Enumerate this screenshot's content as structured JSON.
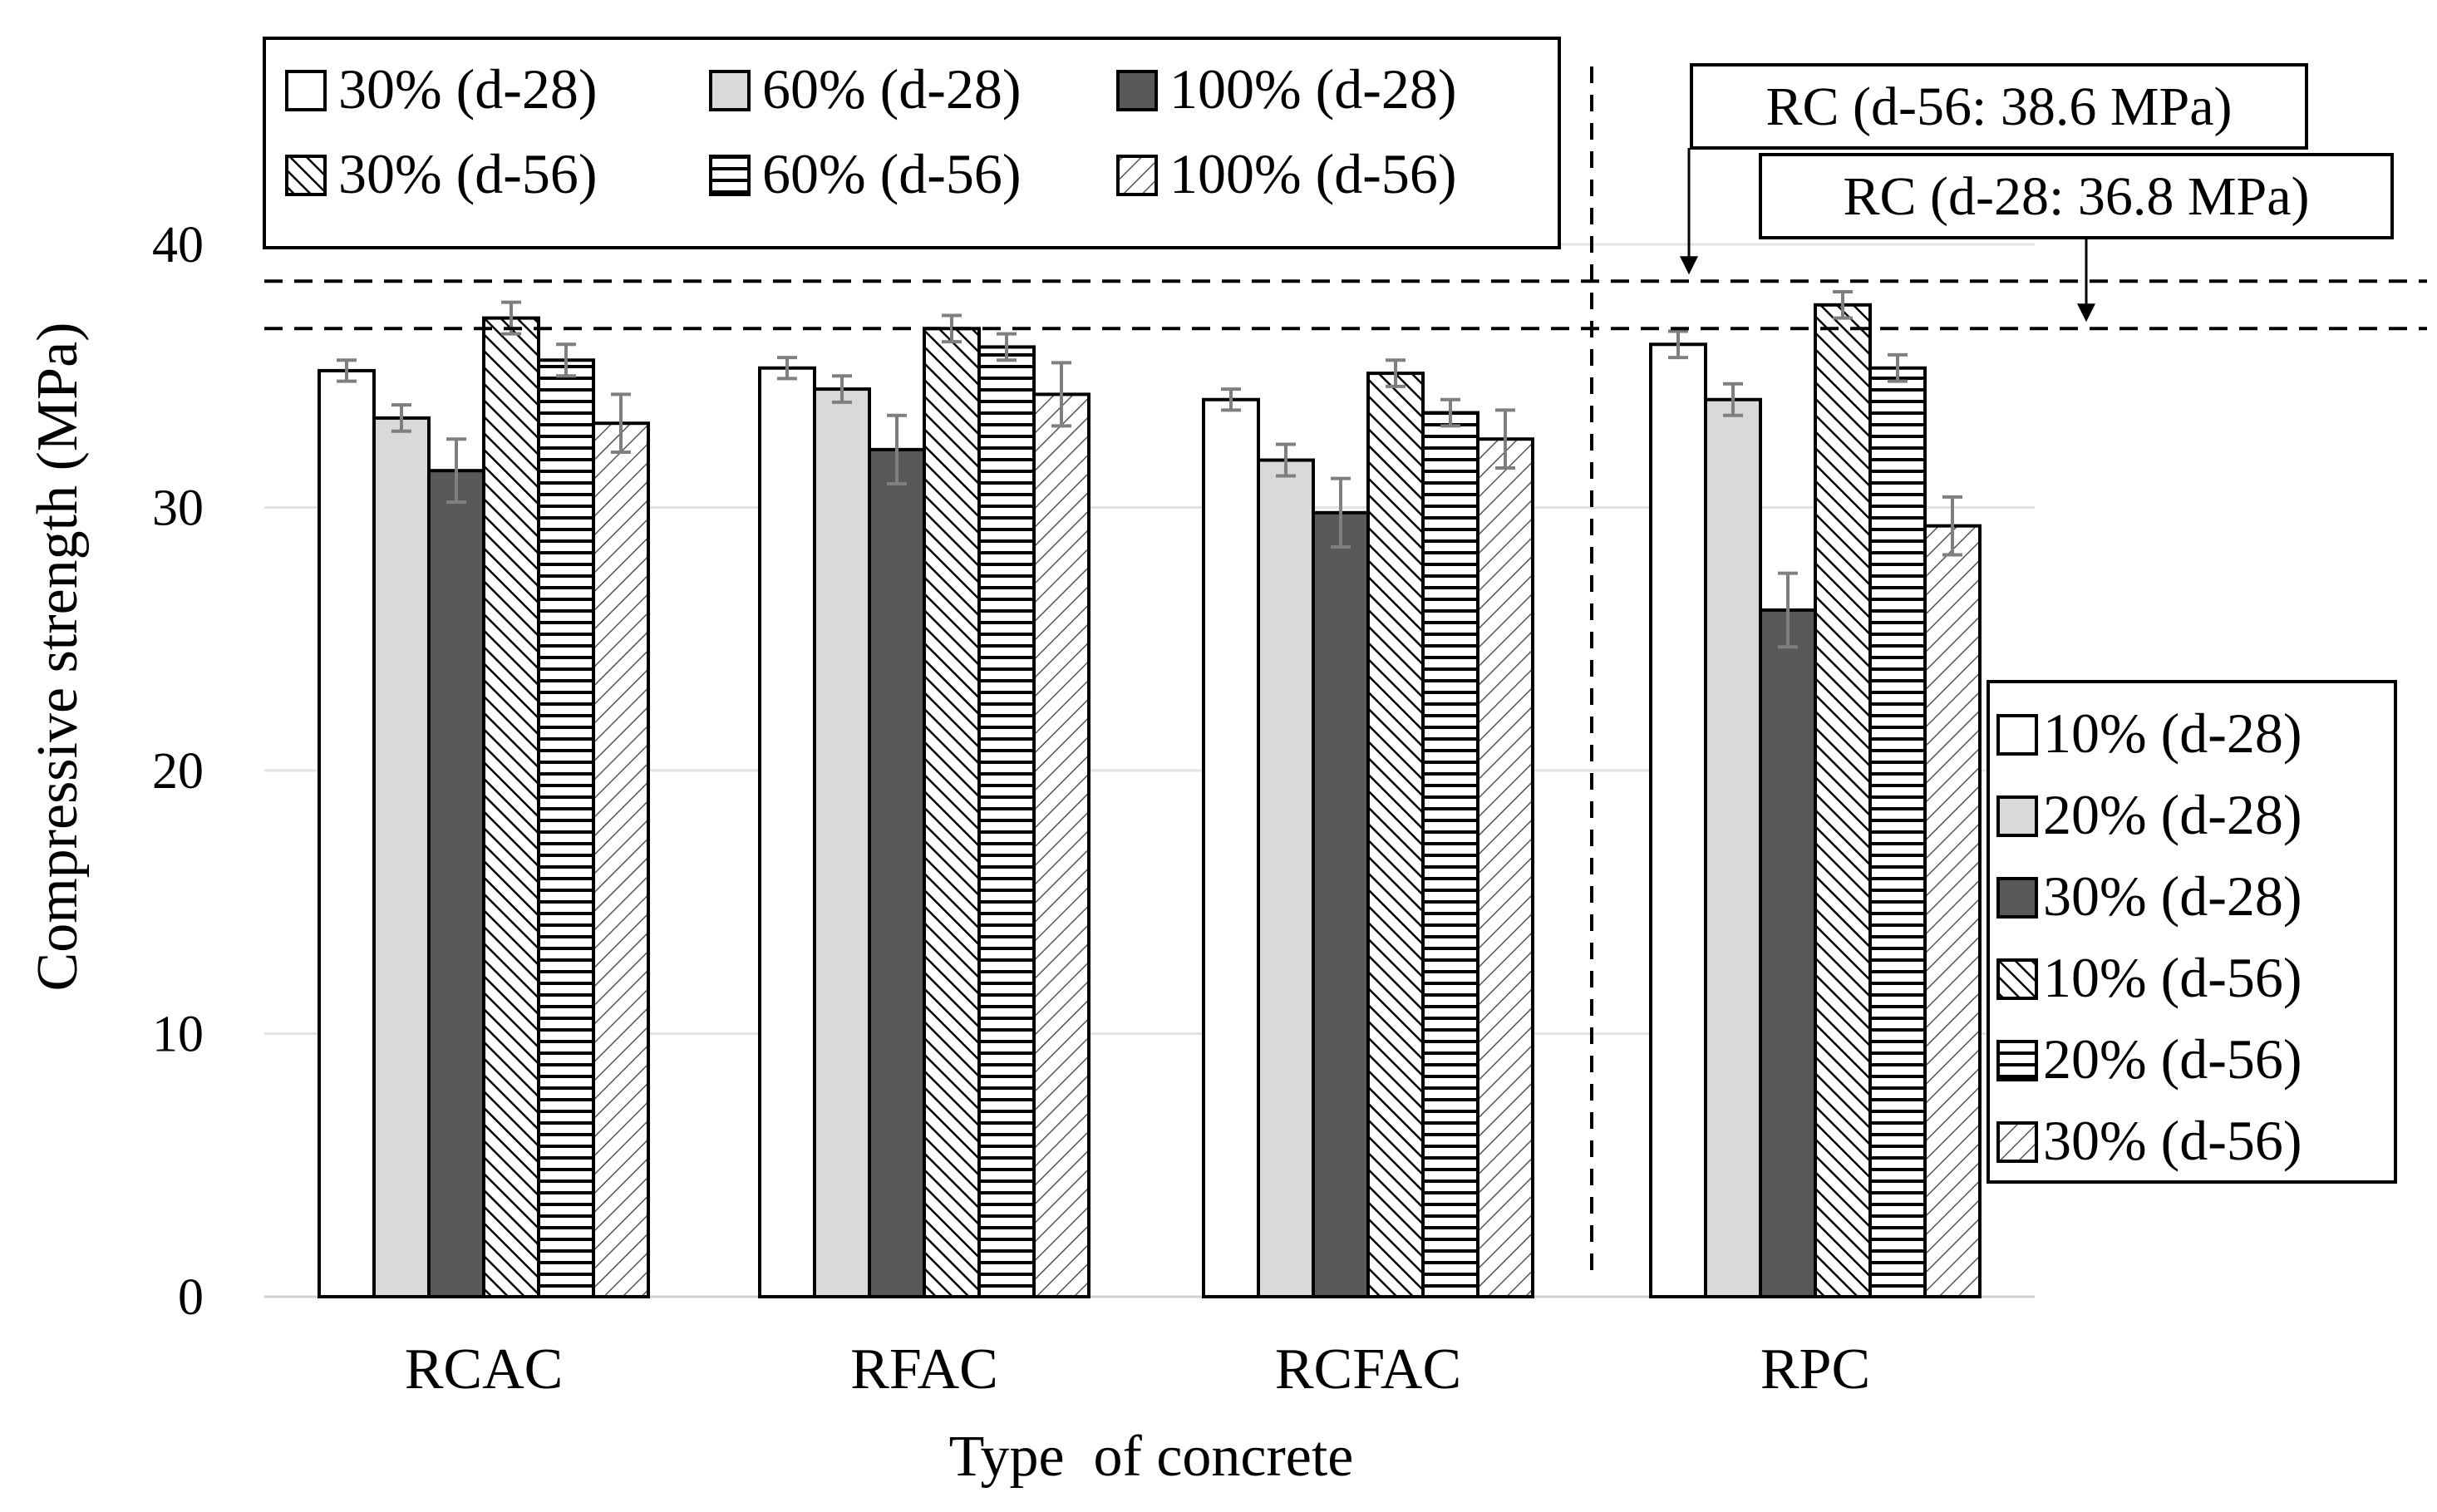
{
  "chart_data": {
    "type": "bar",
    "title": "",
    "xlabel": "Type  of concrete",
    "ylabel": "Compressive strength (MPa)",
    "ylim": [
      0,
      48
    ],
    "yticks": [
      0,
      10,
      20,
      30,
      40
    ],
    "grid": "horizontal",
    "categories": [
      "RCAC",
      "RFAC",
      "RCFAC",
      "RPC"
    ],
    "series": [
      {
        "key": "s1",
        "pattern": "open",
        "values": [
          35.2,
          35.3,
          34.1,
          36.2
        ],
        "errors": [
          0.4,
          0.4,
          0.4,
          0.5
        ]
      },
      {
        "key": "s2",
        "pattern": "light",
        "values": [
          33.4,
          34.5,
          31.8,
          34.1
        ],
        "errors": [
          0.5,
          0.5,
          0.6,
          0.6
        ]
      },
      {
        "key": "s3",
        "pattern": "dark",
        "values": [
          31.4,
          32.2,
          29.8,
          26.1
        ],
        "errors": [
          1.2,
          1.3,
          1.3,
          1.4
        ]
      },
      {
        "key": "s4",
        "pattern": "backdiag",
        "values": [
          37.2,
          36.8,
          35.1,
          37.7
        ],
        "errors": [
          0.6,
          0.5,
          0.5,
          0.5
        ]
      },
      {
        "key": "s5",
        "pattern": "horiz",
        "values": [
          35.6,
          36.1,
          33.6,
          35.3
        ],
        "errors": [
          0.6,
          0.5,
          0.5,
          0.5
        ]
      },
      {
        "key": "s6",
        "pattern": "fwddiag",
        "values": [
          33.2,
          34.3,
          32.6,
          29.3
        ],
        "errors": [
          1.1,
          1.2,
          1.1,
          1.1
        ]
      }
    ],
    "legend_top": {
      "position": "top-left",
      "entries": [
        "30% (d-28)",
        "60% (d-28)",
        "100% (d-28)",
        "30% (d-56)",
        "60% (d-56)",
        "100% (d-56)"
      ]
    },
    "legend_right": {
      "position": "right",
      "entries": [
        "10% (d-28)",
        "20% (d-28)",
        "30% (d-28)",
        "10% (d-56)",
        "20% (d-56)",
        "30% (d-56)"
      ]
    },
    "reference_lines": [
      {
        "label": "RC (d-56: 38.6 MPa)",
        "value": 38.6
      },
      {
        "label": "RC (d-28: 36.8 MPa)",
        "value": 36.8
      }
    ],
    "separator": "vertical dashed line between RCFAC and RPC"
  }
}
